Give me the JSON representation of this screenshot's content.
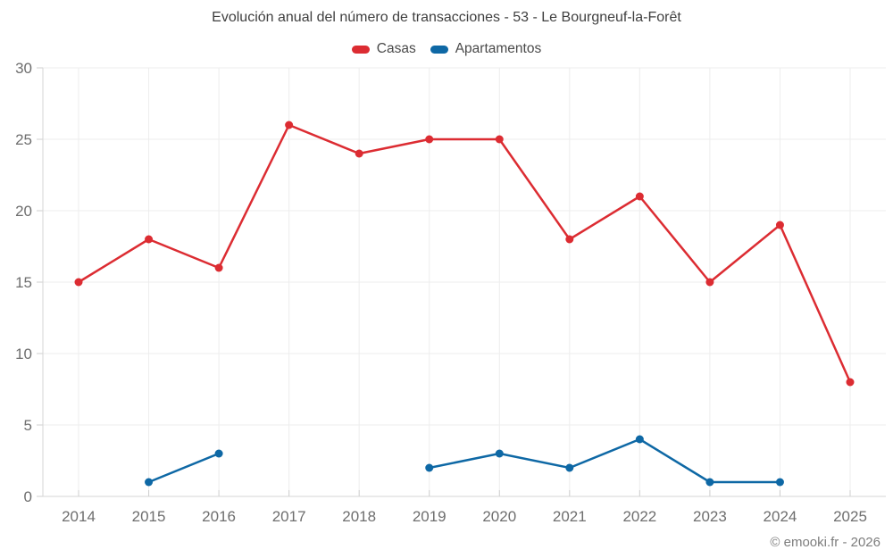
{
  "watermark": "© emooki.fr - 2026",
  "chart_data": {
    "type": "line",
    "title": "Evolución anual del número de transacciones - 53 - Le Bourgneuf-la-Forêt",
    "categories": [
      "2014",
      "2015",
      "2016",
      "2017",
      "2018",
      "2019",
      "2020",
      "2021",
      "2022",
      "2023",
      "2024",
      "2025"
    ],
    "series": [
      {
        "name": "Casas",
        "color": "#dc2c32",
        "values": [
          15,
          18,
          16,
          26,
          24,
          25,
          25,
          18,
          21,
          15,
          19,
          8
        ]
      },
      {
        "name": "Apartamentos",
        "color": "#0e68a5",
        "values": [
          null,
          1,
          3,
          null,
          null,
          2,
          3,
          2,
          4,
          1,
          1,
          null
        ]
      }
    ],
    "xlabel": "",
    "ylabel": "",
    "ylim": [
      0,
      30
    ],
    "yticks": [
      0,
      5,
      10,
      15,
      20,
      25,
      30
    ],
    "grid": true,
    "legend_position": "top"
  }
}
